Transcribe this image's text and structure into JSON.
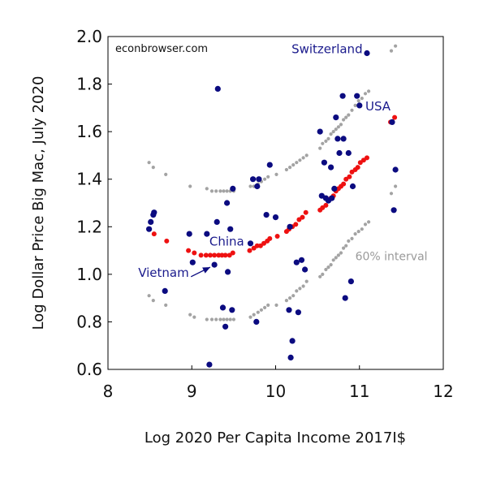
{
  "chart_data": {
    "type": "scatter",
    "xlabel": "Log 2020 Per Capita Income 2017I$",
    "ylabel": "Log Dollar Price Big Mac, July 2020",
    "xlim": [
      8,
      12
    ],
    "ylim": [
      0.6,
      2.0
    ],
    "x_ticks": [
      "8",
      "9",
      "10",
      "11",
      "12"
    ],
    "y_ticks": [
      "0.6",
      "0.8",
      "1.0",
      "1.2",
      "1.4",
      "1.6",
      "1.8",
      "2.0"
    ],
    "grid": false,
    "watermark": "econbrowser.com",
    "colors": {
      "observed": "#0b0b80",
      "fitted": "#ee1111",
      "interval": "#a3a3a3",
      "label": "#1a1a8c",
      "interval_label": "#9a9a9a"
    },
    "annotations": [
      {
        "text": "Switzerland",
        "x": 10.19,
        "y": 1.93
      },
      {
        "text": "USA",
        "x": 11.07,
        "y": 1.69
      },
      {
        "text": "China",
        "x": 9.21,
        "y": 1.12
      },
      {
        "text": "Vietnam",
        "x": 8.36,
        "y": 0.99
      },
      {
        "text": "60% interval",
        "x": 10.95,
        "y": 1.06
      }
    ],
    "arrows": [
      {
        "from": [
          8.99,
          0.99
        ],
        "to": [
          9.22,
          1.03
        ]
      }
    ],
    "series": [
      {
        "kind": "observed",
        "points": [
          [
            8.49,
            1.19
          ],
          [
            8.54,
            1.25
          ],
          [
            8.55,
            1.26
          ],
          [
            8.51,
            1.22
          ],
          [
            8.68,
            0.93
          ],
          [
            8.97,
            1.17
          ],
          [
            9.01,
            1.05
          ],
          [
            9.18,
            1.17
          ],
          [
            9.27,
            1.04
          ],
          [
            9.3,
            1.22
          ],
          [
            9.31,
            1.78
          ],
          [
            9.37,
            0.86
          ],
          [
            9.4,
            0.78
          ],
          [
            9.42,
            1.3
          ],
          [
            9.43,
            1.01
          ],
          [
            9.46,
            1.19
          ],
          [
            9.48,
            0.85
          ],
          [
            9.49,
            1.36
          ],
          [
            9.21,
            0.62
          ],
          [
            9.7,
            1.13
          ],
          [
            9.73,
            1.4
          ],
          [
            9.77,
            0.8
          ],
          [
            9.78,
            1.37
          ],
          [
            9.8,
            1.4
          ],
          [
            9.89,
            1.25
          ],
          [
            9.93,
            1.46
          ],
          [
            10.0,
            1.24
          ],
          [
            10.16,
            0.85
          ],
          [
            10.17,
            1.2
          ],
          [
            10.18,
            0.65
          ],
          [
            10.2,
            0.72
          ],
          [
            10.25,
            1.05
          ],
          [
            10.27,
            0.84
          ],
          [
            10.31,
            1.06
          ],
          [
            10.35,
            1.02
          ],
          [
            10.53,
            1.6
          ],
          [
            10.55,
            1.33
          ],
          [
            10.58,
            1.47
          ],
          [
            10.6,
            1.32
          ],
          [
            10.63,
            1.31
          ],
          [
            10.66,
            1.45
          ],
          [
            10.67,
            1.32
          ],
          [
            10.7,
            1.36
          ],
          [
            10.72,
            1.66
          ],
          [
            10.74,
            1.57
          ],
          [
            10.76,
            1.51
          ],
          [
            10.8,
            1.75
          ],
          [
            10.81,
            1.57
          ],
          [
            10.83,
            0.9
          ],
          [
            10.87,
            1.51
          ],
          [
            10.9,
            0.97
          ],
          [
            10.92,
            1.37
          ],
          [
            10.97,
            1.75
          ],
          [
            11.0,
            1.71
          ],
          [
            11.09,
            1.93
          ],
          [
            11.41,
            1.27
          ],
          [
            11.43,
            1.44
          ],
          [
            11.39,
            1.64
          ]
        ]
      },
      {
        "kind": "fitted",
        "points": [
          [
            8.49,
            1.19
          ],
          [
            8.55,
            1.17
          ],
          [
            8.7,
            1.14
          ],
          [
            8.96,
            1.1
          ],
          [
            9.03,
            1.09
          ],
          [
            9.11,
            1.08
          ],
          [
            9.17,
            1.08
          ],
          [
            9.22,
            1.08
          ],
          [
            9.27,
            1.08
          ],
          [
            9.32,
            1.08
          ],
          [
            9.36,
            1.08
          ],
          [
            9.4,
            1.08
          ],
          [
            9.45,
            1.08
          ],
          [
            9.49,
            1.09
          ],
          [
            9.69,
            1.1
          ],
          [
            9.74,
            1.11
          ],
          [
            9.78,
            1.12
          ],
          [
            9.82,
            1.12
          ],
          [
            9.86,
            1.13
          ],
          [
            9.9,
            1.14
          ],
          [
            9.93,
            1.15
          ],
          [
            10.02,
            1.16
          ],
          [
            10.13,
            1.18
          ],
          [
            10.16,
            1.19
          ],
          [
            10.2,
            1.2
          ],
          [
            10.24,
            1.21
          ],
          [
            10.28,
            1.23
          ],
          [
            10.32,
            1.24
          ],
          [
            10.36,
            1.26
          ],
          [
            10.53,
            1.27
          ],
          [
            10.56,
            1.28
          ],
          [
            10.6,
            1.29
          ],
          [
            10.63,
            1.31
          ],
          [
            10.66,
            1.32
          ],
          [
            10.69,
            1.33
          ],
          [
            10.72,
            1.35
          ],
          [
            10.75,
            1.36
          ],
          [
            10.78,
            1.37
          ],
          [
            10.81,
            1.38
          ],
          [
            10.84,
            1.4
          ],
          [
            10.88,
            1.41
          ],
          [
            10.91,
            1.43
          ],
          [
            10.95,
            1.44
          ],
          [
            10.98,
            1.45
          ],
          [
            11.01,
            1.47
          ],
          [
            11.05,
            1.48
          ],
          [
            11.09,
            1.49
          ],
          [
            11.37,
            1.64
          ],
          [
            11.42,
            1.66
          ]
        ]
      },
      {
        "kind": "interval_upper",
        "points": [
          [
            8.49,
            1.47
          ],
          [
            8.54,
            1.45
          ],
          [
            8.69,
            1.42
          ],
          [
            8.98,
            1.37
          ],
          [
            9.18,
            1.36
          ],
          [
            9.24,
            1.35
          ],
          [
            9.29,
            1.35
          ],
          [
            9.34,
            1.35
          ],
          [
            9.38,
            1.35
          ],
          [
            9.42,
            1.35
          ],
          [
            9.46,
            1.35
          ],
          [
            9.5,
            1.35
          ],
          [
            9.7,
            1.37
          ],
          [
            9.74,
            1.37
          ],
          [
            9.79,
            1.38
          ],
          [
            9.83,
            1.39
          ],
          [
            9.87,
            1.4
          ],
          [
            9.91,
            1.41
          ],
          [
            10.01,
            1.42
          ],
          [
            10.13,
            1.44
          ],
          [
            10.17,
            1.45
          ],
          [
            10.21,
            1.46
          ],
          [
            10.25,
            1.47
          ],
          [
            10.29,
            1.48
          ],
          [
            10.33,
            1.49
          ],
          [
            10.37,
            1.5
          ],
          [
            10.53,
            1.53
          ],
          [
            10.56,
            1.55
          ],
          [
            10.6,
            1.56
          ],
          [
            10.63,
            1.57
          ],
          [
            10.66,
            1.59
          ],
          [
            10.69,
            1.6
          ],
          [
            10.72,
            1.61
          ],
          [
            10.75,
            1.62
          ],
          [
            10.78,
            1.63
          ],
          [
            10.81,
            1.65
          ],
          [
            10.84,
            1.66
          ],
          [
            10.87,
            1.67
          ],
          [
            10.91,
            1.69
          ],
          [
            10.95,
            1.71
          ],
          [
            10.99,
            1.73
          ],
          [
            11.03,
            1.74
          ],
          [
            11.07,
            1.76
          ],
          [
            11.11,
            1.77
          ],
          [
            11.38,
            1.94
          ],
          [
            11.43,
            1.96
          ]
        ]
      },
      {
        "kind": "interval_lower",
        "points": [
          [
            8.49,
            0.91
          ],
          [
            8.54,
            0.89
          ],
          [
            8.69,
            0.87
          ],
          [
            8.98,
            0.83
          ],
          [
            9.03,
            0.82
          ],
          [
            9.18,
            0.81
          ],
          [
            9.24,
            0.81
          ],
          [
            9.29,
            0.81
          ],
          [
            9.34,
            0.81
          ],
          [
            9.38,
            0.81
          ],
          [
            9.42,
            0.81
          ],
          [
            9.46,
            0.81
          ],
          [
            9.5,
            0.81
          ],
          [
            9.7,
            0.82
          ],
          [
            9.74,
            0.83
          ],
          [
            9.79,
            0.84
          ],
          [
            9.83,
            0.85
          ],
          [
            9.87,
            0.86
          ],
          [
            9.91,
            0.87
          ],
          [
            10.01,
            0.87
          ],
          [
            10.13,
            0.89
          ],
          [
            10.17,
            0.9
          ],
          [
            10.21,
            0.91
          ],
          [
            10.25,
            0.93
          ],
          [
            10.29,
            0.94
          ],
          [
            10.33,
            0.95
          ],
          [
            10.37,
            0.97
          ],
          [
            10.53,
            0.99
          ],
          [
            10.56,
            1.0
          ],
          [
            10.6,
            1.02
          ],
          [
            10.63,
            1.03
          ],
          [
            10.66,
            1.04
          ],
          [
            10.69,
            1.06
          ],
          [
            10.72,
            1.07
          ],
          [
            10.75,
            1.08
          ],
          [
            10.78,
            1.09
          ],
          [
            10.81,
            1.11
          ],
          [
            10.84,
            1.12
          ],
          [
            10.87,
            1.14
          ],
          [
            10.91,
            1.15
          ],
          [
            10.95,
            1.17
          ],
          [
            10.99,
            1.18
          ],
          [
            11.03,
            1.19
          ],
          [
            11.07,
            1.21
          ],
          [
            11.11,
            1.22
          ],
          [
            11.38,
            1.34
          ],
          [
            11.43,
            1.37
          ]
        ]
      }
    ]
  }
}
